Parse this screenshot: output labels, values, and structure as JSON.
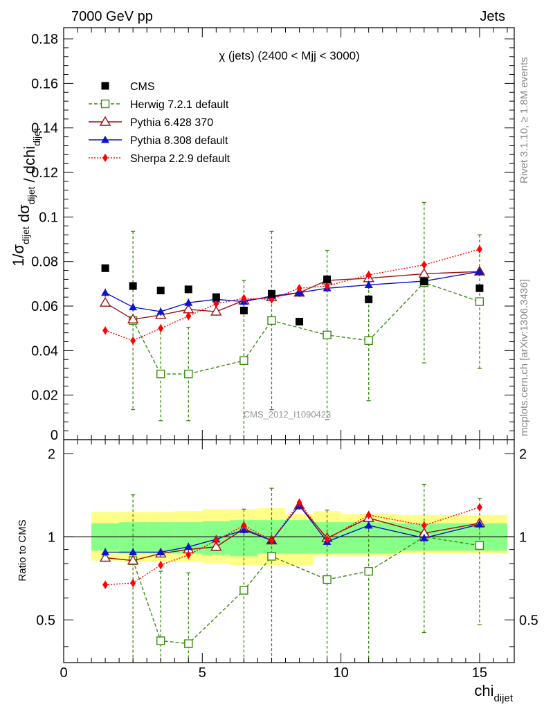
{
  "header": {
    "left": "7000 GeV pp",
    "right": "Jets"
  },
  "side_labels": {
    "rivet": "Rivet 3.1.10, ≥ 1.8M events",
    "mcplots": "mcplots.cern.ch [arXiv:1306.3436]"
  },
  "chart_data": {
    "type": "line",
    "title": "χ (jets) (2400 < Mjj < 3000)",
    "watermark": "CMS_2012_I1090423",
    "xlabel": "chi_dijet",
    "ylabel_main": "1/σ_dijet dσ_dijet / dchi_dijet",
    "ylabel_ratio": "Ratio to CMS",
    "xlim": [
      0,
      16.25
    ],
    "ylim_main": [
      0,
      0.185
    ],
    "ylim_ratio": [
      0.35,
      2.25
    ],
    "x_ticks": [
      "0",
      "5",
      "10",
      "15"
    ],
    "y_ticks_main": [
      "0",
      "0.02",
      "0.04",
      "0.06",
      "0.08",
      "0.1",
      "0.12",
      "0.14",
      "0.16",
      "0.18"
    ],
    "y_ticks_ratio": [
      "0.5",
      "1",
      "2"
    ],
    "legend_position": "top-left",
    "bins": [
      [
        1,
        2
      ],
      [
        2,
        3
      ],
      [
        3,
        4
      ],
      [
        4,
        5
      ],
      [
        5,
        6
      ],
      [
        6,
        7
      ],
      [
        7,
        8
      ],
      [
        8,
        9
      ],
      [
        9,
        10
      ],
      [
        10,
        12
      ],
      [
        12,
        14
      ],
      [
        14,
        16
      ]
    ],
    "x": [
      1.5,
      2.5,
      3.5,
      4.5,
      5.5,
      6.5,
      7.5,
      8.5,
      9.5,
      11,
      13,
      15
    ],
    "data": {
      "name": "CMS",
      "values": [
        0.077,
        0.069,
        0.067,
        0.0675,
        0.064,
        0.058,
        0.0655,
        0.053,
        0.072,
        0.063,
        0.071,
        0.068
      ],
      "color": "#000000"
    },
    "series": [
      {
        "name": "Herwig 7.2.1 default",
        "color": "#3a8a10",
        "marker": "open-square",
        "style": "dashed",
        "x": [
          2.5,
          3.5,
          4.5,
          6.5,
          7.5,
          9.5,
          11,
          13,
          15
        ],
        "values": [
          0.0535,
          0.0295,
          0.0295,
          0.0355,
          0.0535,
          0.047,
          0.0445,
          0.0705,
          0.062
        ],
        "err": [
          0.04,
          0.021,
          0.021,
          0.036,
          0.04,
          0.038,
          0.027,
          0.036,
          0.03
        ],
        "ratio": [
          0.82,
          0.42,
          0.41,
          0.64,
          0.85,
          0.7,
          0.75,
          1.0,
          0.93
        ],
        "ratio_err": [
          0.6,
          0.33,
          0.33,
          0.62,
          0.65,
          0.55,
          0.45,
          0.55,
          0.45
        ]
      },
      {
        "name": "Pythia 6.428 370",
        "color": "#9a1010",
        "marker": "open-triangle",
        "style": "solid",
        "x": [
          1.5,
          2.5,
          3.5,
          4.5,
          5.5,
          6.5,
          7.5,
          8.5,
          9.5,
          11,
          13,
          15
        ],
        "values": [
          0.0615,
          0.054,
          0.056,
          0.0585,
          0.0575,
          0.0625,
          0.064,
          0.066,
          0.0715,
          0.0725,
          0.0745,
          0.0755
        ],
        "ratio": [
          0.84,
          0.82,
          0.87,
          0.9,
          0.92,
          1.07,
          0.97,
          1.3,
          0.99,
          1.17,
          1.03,
          1.12
        ]
      },
      {
        "name": "Pythia 8.308 default",
        "color": "#0a14c8",
        "marker": "filled-triangle",
        "style": "solid",
        "x": [
          1.5,
          2.5,
          3.5,
          4.5,
          5.5,
          6.5,
          7.5,
          8.5,
          9.5,
          11,
          13,
          15
        ],
        "values": [
          0.066,
          0.0595,
          0.0575,
          0.0615,
          0.063,
          0.062,
          0.0645,
          0.066,
          0.068,
          0.0695,
          0.0712,
          0.0755
        ],
        "ratio": [
          0.88,
          0.88,
          0.88,
          0.92,
          0.98,
          1.06,
          0.97,
          1.3,
          0.96,
          1.1,
          0.99,
          1.11
        ]
      },
      {
        "name": "Sherpa 2.2.9 default",
        "color": "#ff0000",
        "marker": "filled-diamond",
        "style": "dotted",
        "x": [
          1.5,
          2.5,
          3.5,
          4.5,
          5.5,
          6.5,
          7.5,
          8.5,
          9.5,
          11,
          13,
          15
        ],
        "values": [
          0.049,
          0.0445,
          0.05,
          0.0555,
          0.061,
          0.0635,
          0.063,
          0.068,
          0.069,
          0.074,
          0.0785,
          0.0855
        ],
        "ratio": [
          0.67,
          0.68,
          0.79,
          0.86,
          0.97,
          1.1,
          0.97,
          1.33,
          0.98,
          1.2,
          1.1,
          1.28
        ]
      }
    ],
    "ratio_band_green": [
      [
        0.89,
        1.12
      ],
      [
        0.87,
        1.13
      ],
      [
        0.87,
        1.13
      ],
      [
        0.87,
        1.13
      ],
      [
        0.86,
        1.14
      ],
      [
        0.85,
        1.15
      ],
      [
        0.87,
        1.15
      ],
      [
        0.87,
        1.15
      ],
      [
        0.87,
        1.13
      ],
      [
        0.87,
        1.13
      ],
      [
        0.89,
        1.12
      ],
      [
        0.89,
        1.12
      ]
    ],
    "ratio_band_yellow": [
      [
        0.82,
        1.23
      ],
      [
        0.81,
        1.23
      ],
      [
        0.81,
        1.23
      ],
      [
        0.81,
        1.24
      ],
      [
        0.8,
        1.26
      ],
      [
        0.79,
        1.26
      ],
      [
        0.79,
        1.27
      ],
      [
        0.79,
        1.21
      ],
      [
        0.85,
        1.24
      ],
      [
        0.85,
        1.21
      ],
      [
        0.87,
        1.2
      ],
      [
        0.87,
        1.2
      ]
    ]
  }
}
